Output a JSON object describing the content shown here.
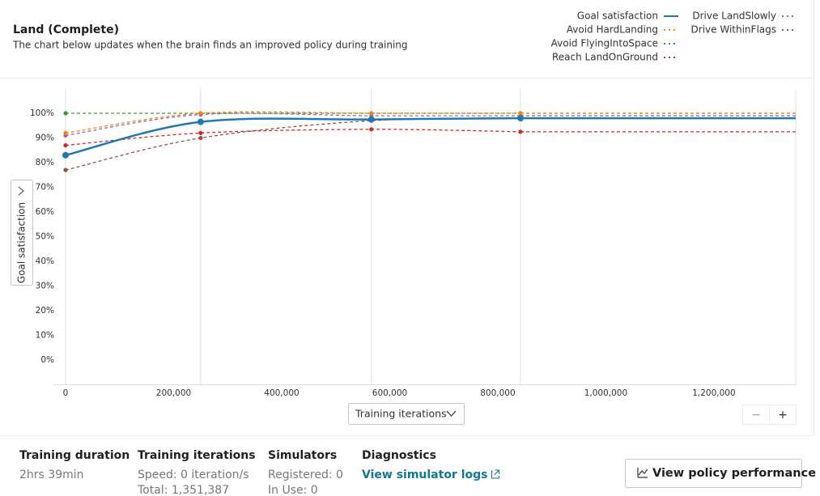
{
  "header": {
    "title": "Land (Complete)",
    "subtitle": "The chart below updates when the brain finds an improved policy during training"
  },
  "chart_data": {
    "type": "line",
    "y_label": "Goal satisfaction",
    "x_label": "Training iterations",
    "x": [
      0,
      250000,
      566000,
      842000
    ],
    "series": [
      {
        "name": "Goal satisfaction",
        "color": "#1f77b4",
        "dash": "solid",
        "values": [
          83,
          96.5,
          97.5,
          98
        ]
      },
      {
        "name": "Avoid HardLanding",
        "color": "#ff7f0e",
        "dash": "dashed",
        "values": [
          92,
          100,
          100,
          100
        ]
      },
      {
        "name": "Avoid FlyingIntoSpace",
        "color": "#2ca02c",
        "dash": "dashed",
        "values": [
          100,
          100,
          100,
          100
        ]
      },
      {
        "name": "Reach LandOnGround",
        "color": "#d62728",
        "dash": "dashed",
        "values": [
          87,
          92,
          93.5,
          92.5
        ]
      },
      {
        "name": "Drive LandSlowly",
        "color": "#9467bd",
        "dash": "dashed",
        "values": [
          91,
          99.5,
          99,
          99
        ]
      },
      {
        "name": "Drive WithinFlags",
        "color": "#8c564b",
        "dash": "dashed",
        "values": [
          77,
          90,
          97,
          98
        ]
      }
    ],
    "xlim": [
      0,
      1351387
    ],
    "ylim": [
      -10,
      110
    ],
    "xticks": [
      0,
      {
        "value": 200000,
        "label": "200,000"
      },
      {
        "value": 400000,
        "label": "400,000"
      },
      {
        "value": 600000,
        "label": "600,000"
      },
      {
        "value": 800000,
        "label": "800,000"
      },
      {
        "value": 1000000,
        "label": "1,000,000"
      },
      {
        "value": 1200000,
        "label": "1,200,000"
      }
    ],
    "yticks": [
      {
        "value": 0,
        "label": "0%"
      },
      {
        "value": 10,
        "label": "10%"
      },
      {
        "value": 20,
        "label": "20%"
      },
      {
        "value": 30,
        "label": "30%"
      },
      {
        "value": 40,
        "label": "40%"
      },
      {
        "value": 50,
        "label": "50%"
      },
      {
        "value": 60,
        "label": "60%"
      },
      {
        "value": 70,
        "label": "70%"
      },
      {
        "value": 80,
        "label": "80%"
      },
      {
        "value": 90,
        "label": "90%"
      },
      {
        "value": 100,
        "label": "100%"
      }
    ],
    "legend": "top-right"
  },
  "controls": {
    "zoom_out": "−",
    "zoom_in": "+"
  },
  "stats": [
    {
      "label": "Training duration",
      "lines": [
        "2hrs 39min"
      ]
    },
    {
      "label": "Training iterations",
      "lines": [
        "Speed: 0 iteration/s",
        "Total: 1,351,387"
      ]
    },
    {
      "label": "Simulators",
      "lines": [
        "Registered: 0",
        "In Use: 0"
      ]
    },
    {
      "label": "Diagnostics",
      "link": "View simulator logs"
    }
  ],
  "button": "View policy performance"
}
